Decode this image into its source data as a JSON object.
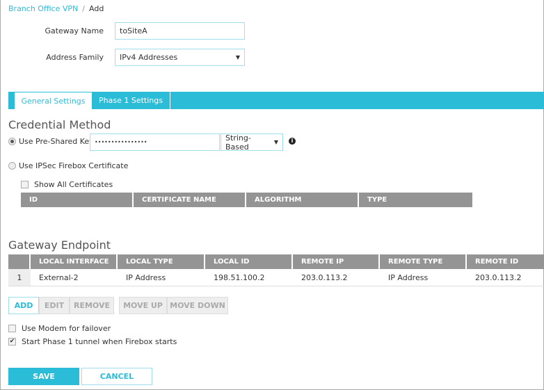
{
  "breadcrumb": {
    "parent": "Branch Office VPN",
    "current": "Add"
  },
  "form": {
    "gateway_name_label": "Gateway Name",
    "gateway_name_value": "toSiteA",
    "address_family_label": "Address Family",
    "address_family_value": "IPv4 Addresses"
  },
  "tabs": [
    {
      "label": "General Settings",
      "active": true
    },
    {
      "label": "Phase 1 Settings",
      "active": false
    }
  ],
  "credential": {
    "heading": "Credential Method",
    "psk_label": "Use Pre-Shared Key",
    "psk_value": "••••••••••••••••",
    "psk_type": "String-Based",
    "cert_label": "Use IPSec Firebox Certificate",
    "show_all_label": "Show All Certificates",
    "cert_columns": [
      "ID",
      "CERTIFICATE NAME",
      "ALGORITHM",
      "TYPE"
    ]
  },
  "endpoint": {
    "heading": "Gateway Endpoint",
    "columns": [
      "",
      "LOCAL INTERFACE",
      "LOCAL TYPE",
      "LOCAL ID",
      "REMOTE IP",
      "REMOTE TYPE",
      "REMOTE ID"
    ],
    "rows": [
      [
        "1",
        "External-2",
        "IP Address",
        "198.51.100.2",
        "203.0.113.2",
        "IP Address",
        "203.0.113.2"
      ]
    ],
    "buttons": {
      "add": "ADD",
      "edit": "EDIT",
      "remove": "REMOVE",
      "move_up": "MOVE UP",
      "move_down": "MOVE DOWN"
    }
  },
  "options": {
    "modem_label": "Use Modem for failover",
    "modem_checked": false,
    "start_label": "Start Phase 1 tunnel when Firebox starts",
    "start_checked": true
  },
  "actions": {
    "save": "SAVE",
    "cancel": "CANCEL"
  },
  "colors": {
    "accent": "#2bbcd8",
    "header_gray": "#949494"
  }
}
